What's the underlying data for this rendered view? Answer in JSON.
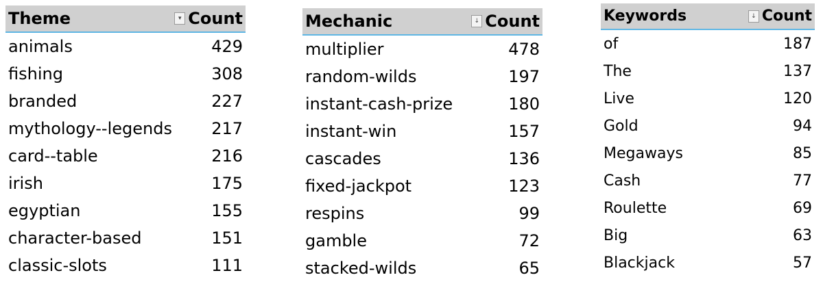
{
  "tables": [
    {
      "header": {
        "label": "Theme",
        "count_label": "Count",
        "filter_icon": "dropdown-arrow-icon"
      },
      "rows": [
        {
          "label": "animals",
          "count": "429"
        },
        {
          "label": "fishing",
          "count": "308"
        },
        {
          "label": "branded",
          "count": "227"
        },
        {
          "label": "mythology--legends",
          "count": "217"
        },
        {
          "label": "card--table",
          "count": "216"
        },
        {
          "label": "irish",
          "count": "175"
        },
        {
          "label": "egyptian",
          "count": "155"
        },
        {
          "label": "character-based",
          "count": "151"
        },
        {
          "label": "classic-slots",
          "count": "111"
        }
      ]
    },
    {
      "header": {
        "label": "Mechanic",
        "count_label": "Count",
        "filter_icon": "sort-descending-icon"
      },
      "rows": [
        {
          "label": "multiplier",
          "count": "478"
        },
        {
          "label": "random-wilds",
          "count": "197"
        },
        {
          "label": "instant-cash-prize",
          "count": "180"
        },
        {
          "label": "instant-win",
          "count": "157"
        },
        {
          "label": "cascades",
          "count": "136"
        },
        {
          "label": "fixed-jackpot",
          "count": "123"
        },
        {
          "label": "respins",
          "count": "99"
        },
        {
          "label": "gamble",
          "count": "72"
        },
        {
          "label": "stacked-wilds",
          "count": "65"
        }
      ]
    },
    {
      "header": {
        "label": "Keywords",
        "count_label": "Count",
        "filter_icon": "sort-descending-icon"
      },
      "rows": [
        {
          "label": "of",
          "count": "187"
        },
        {
          "label": "The",
          "count": "137"
        },
        {
          "label": "Live",
          "count": "120"
        },
        {
          "label": "Gold",
          "count": "94"
        },
        {
          "label": "Megaways",
          "count": "85"
        },
        {
          "label": "Cash",
          "count": "77"
        },
        {
          "label": "Roulette",
          "count": "69"
        },
        {
          "label": "Big",
          "count": "63"
        },
        {
          "label": "Blackjack",
          "count": "57"
        }
      ]
    }
  ]
}
